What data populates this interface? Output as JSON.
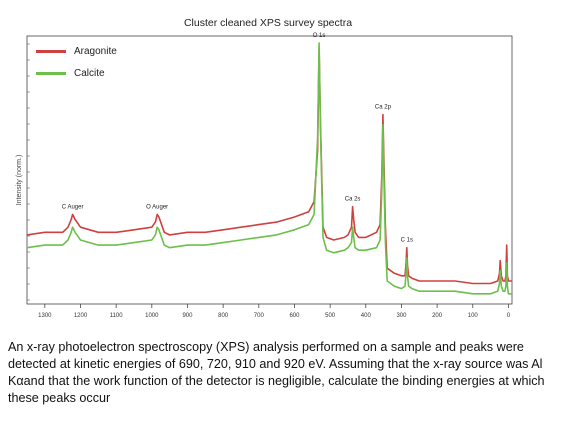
{
  "chart_data": {
    "type": "line",
    "title": "Cluster cleaned XPS survey spectra",
    "xlabel": "",
    "ylabel": "Intensity (norm.)",
    "xlim": [
      1350,
      -10
    ],
    "x_reversed": true,
    "ylim": [
      0,
      1
    ],
    "x_ticks": [
      1300,
      1200,
      1100,
      1000,
      900,
      800,
      700,
      600,
      500,
      400,
      300,
      200,
      100,
      0
    ],
    "grid": false,
    "legend_position": "top-left",
    "series": [
      {
        "name": "Aragonite",
        "color": "#d0403f",
        "x": [
          1350,
          1300,
          1250,
          1235,
          1226,
          1222,
          1215,
          1200,
          1150,
          1100,
          1050,
          1000,
          990,
          985,
          980,
          975,
          965,
          950,
          900,
          850,
          800,
          750,
          700,
          650,
          600,
          560,
          545,
          535,
          531,
          527,
          520,
          510,
          490,
          460,
          450,
          440,
          437,
          434,
          430,
          420,
          400,
          370,
          360,
          355,
          352,
          349,
          347,
          345,
          340,
          320,
          300,
          290,
          287,
          285,
          283,
          280,
          270,
          250,
          200,
          150,
          100,
          50,
          30,
          25,
          23,
          20,
          15,
          10,
          7,
          5,
          3,
          0,
          -10
        ],
        "y": [
          0.27,
          0.28,
          0.28,
          0.3,
          0.33,
          0.35,
          0.33,
          0.3,
          0.28,
          0.28,
          0.29,
          0.3,
          0.32,
          0.35,
          0.34,
          0.32,
          0.28,
          0.27,
          0.28,
          0.28,
          0.29,
          0.3,
          0.31,
          0.32,
          0.34,
          0.36,
          0.4,
          0.6,
          1.0,
          0.7,
          0.3,
          0.26,
          0.25,
          0.26,
          0.27,
          0.3,
          0.38,
          0.33,
          0.28,
          0.26,
          0.26,
          0.28,
          0.31,
          0.5,
          0.74,
          0.55,
          0.42,
          0.3,
          0.14,
          0.12,
          0.11,
          0.11,
          0.16,
          0.22,
          0.15,
          0.11,
          0.1,
          0.09,
          0.09,
          0.09,
          0.08,
          0.08,
          0.09,
          0.12,
          0.17,
          0.11,
          0.09,
          0.09,
          0.11,
          0.23,
          0.11,
          0.09,
          0.09
        ]
      },
      {
        "name": "Calcite",
        "color": "#6cc04a",
        "x": [
          1350,
          1300,
          1250,
          1235,
          1226,
          1222,
          1215,
          1200,
          1150,
          1100,
          1050,
          1000,
          990,
          985,
          980,
          975,
          965,
          950,
          900,
          850,
          800,
          750,
          700,
          650,
          600,
          560,
          545,
          535,
          531,
          527,
          520,
          510,
          490,
          460,
          450,
          440,
          437,
          434,
          430,
          420,
          400,
          370,
          360,
          355,
          352,
          349,
          347,
          345,
          340,
          320,
          300,
          290,
          287,
          285,
          283,
          280,
          270,
          250,
          200,
          150,
          100,
          50,
          30,
          25,
          23,
          20,
          15,
          10,
          7,
          5,
          3,
          0,
          -10
        ],
        "y": [
          0.22,
          0.23,
          0.23,
          0.25,
          0.28,
          0.3,
          0.28,
          0.25,
          0.23,
          0.23,
          0.24,
          0.25,
          0.27,
          0.3,
          0.29,
          0.27,
          0.23,
          0.22,
          0.23,
          0.23,
          0.24,
          0.25,
          0.26,
          0.27,
          0.29,
          0.31,
          0.35,
          0.65,
          1.02,
          0.68,
          0.26,
          0.21,
          0.2,
          0.21,
          0.22,
          0.24,
          0.3,
          0.26,
          0.22,
          0.21,
          0.21,
          0.22,
          0.25,
          0.44,
          0.7,
          0.48,
          0.36,
          0.24,
          0.09,
          0.07,
          0.06,
          0.07,
          0.12,
          0.18,
          0.11,
          0.07,
          0.06,
          0.05,
          0.05,
          0.05,
          0.04,
          0.04,
          0.05,
          0.08,
          0.13,
          0.07,
          0.05,
          0.05,
          0.07,
          0.16,
          0.07,
          0.04,
          0.04
        ]
      }
    ],
    "annotations": [
      {
        "text": "C Auger",
        "x": 1222,
        "y": 0.35
      },
      {
        "text": "O Auger",
        "x": 985,
        "y": 0.35
      },
      {
        "text": "O 1s",
        "x": 531,
        "y": 1.02
      },
      {
        "text": "Ca 2s",
        "x": 437,
        "y": 0.38
      },
      {
        "text": "Ca 2p",
        "x": 352,
        "y": 0.74
      },
      {
        "text": "C 1s",
        "x": 285,
        "y": 0.22
      }
    ]
  },
  "question": "An x-ray photoelectron spectroscopy (XPS) analysis performed on a sample and peaks were detected at kinetic energies of 690, 720, 910 and 920 eV. Assuming that the x-ray source was Al Kαand that the work function of the detector is negligible, calculate the binding energies at which these peaks occur"
}
